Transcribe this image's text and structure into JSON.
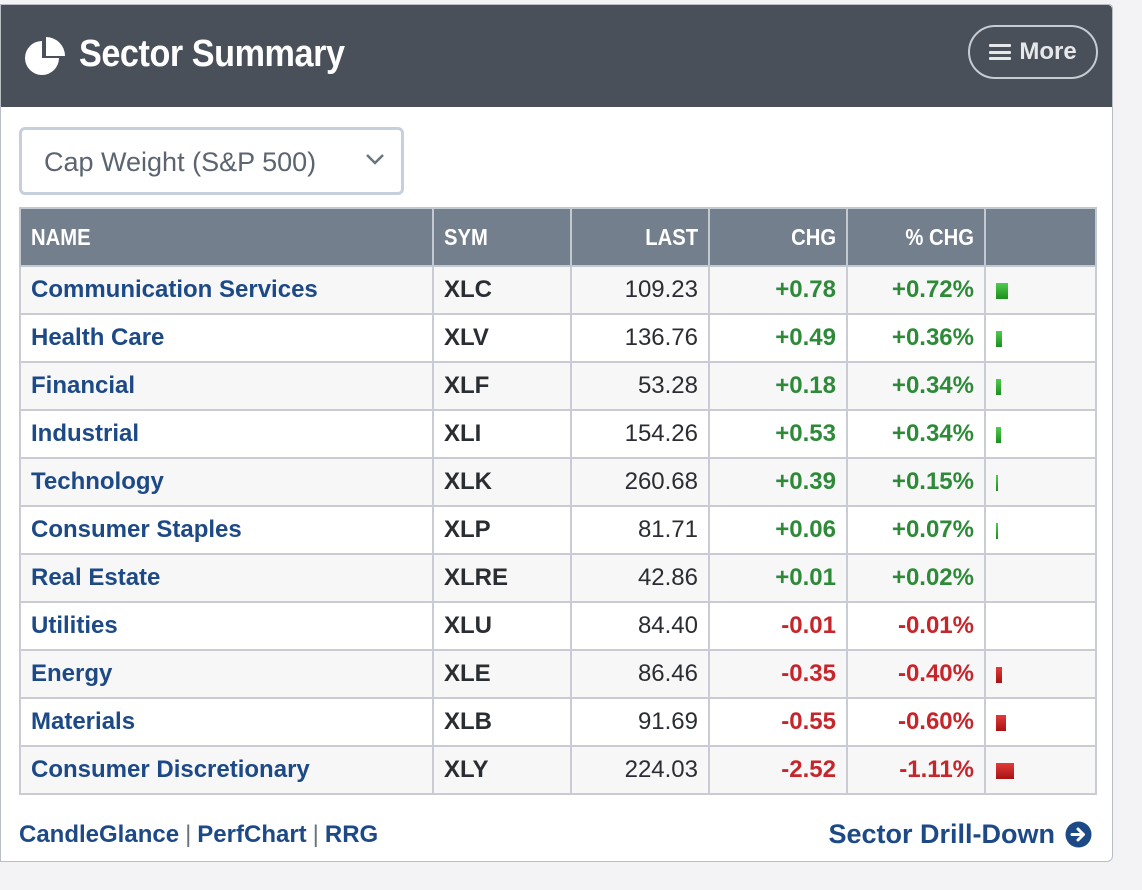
{
  "header": {
    "title": "Sector Summary",
    "more_label": "More"
  },
  "selector": {
    "value": "Cap Weight (S&P 500)"
  },
  "table": {
    "columns": [
      "NAME",
      "SYM",
      "LAST",
      "CHG",
      "% CHG",
      ""
    ],
    "rows": [
      {
        "name": "Communication Services",
        "sym": "XLC",
        "last": "109.23",
        "chg": "+0.78",
        "pct": "+0.72%",
        "dir": "up",
        "pct_value": 0.72
      },
      {
        "name": "Health Care",
        "sym": "XLV",
        "last": "136.76",
        "chg": "+0.49",
        "pct": "+0.36%",
        "dir": "up",
        "pct_value": 0.36
      },
      {
        "name": "Financial",
        "sym": "XLF",
        "last": "53.28",
        "chg": "+0.18",
        "pct": "+0.34%",
        "dir": "up",
        "pct_value": 0.34
      },
      {
        "name": "Industrial",
        "sym": "XLI",
        "last": "154.26",
        "chg": "+0.53",
        "pct": "+0.34%",
        "dir": "up",
        "pct_value": 0.34
      },
      {
        "name": "Technology",
        "sym": "XLK",
        "last": "260.68",
        "chg": "+0.39",
        "pct": "+0.15%",
        "dir": "up",
        "pct_value": 0.15
      },
      {
        "name": "Consumer Staples",
        "sym": "XLP",
        "last": "81.71",
        "chg": "+0.06",
        "pct": "+0.07%",
        "dir": "up",
        "pct_value": 0.07
      },
      {
        "name": "Real Estate",
        "sym": "XLRE",
        "last": "42.86",
        "chg": "+0.01",
        "pct": "+0.02%",
        "dir": "up",
        "pct_value": 0.02
      },
      {
        "name": "Utilities",
        "sym": "XLU",
        "last": "84.40",
        "chg": "-0.01",
        "pct": "-0.01%",
        "dir": "down",
        "pct_value": -0.01
      },
      {
        "name": "Energy",
        "sym": "XLE",
        "last": "86.46",
        "chg": "-0.35",
        "pct": "-0.40%",
        "dir": "down",
        "pct_value": -0.4
      },
      {
        "name": "Materials",
        "sym": "XLB",
        "last": "91.69",
        "chg": "-0.55",
        "pct": "-0.60%",
        "dir": "down",
        "pct_value": -0.6
      },
      {
        "name": "Consumer Discretionary",
        "sym": "XLY",
        "last": "224.03",
        "chg": "-2.52",
        "pct": "-1.11%",
        "dir": "down",
        "pct_value": -1.11
      }
    ]
  },
  "footer": {
    "links": [
      "CandleGlance",
      "PerfChart",
      "RRG"
    ],
    "separator": "|",
    "drill_label": "Sector Drill-Down"
  },
  "colors": {
    "positive": "#2e8a39",
    "negative": "#c6262b",
    "header_bg": "#4a5059",
    "link": "#1d4a86"
  },
  "icons": {
    "logo": "pie-chart-icon",
    "more": "hamburger-menu-icon",
    "select": "chevron-down-icon",
    "drill": "arrow-right-circle-icon"
  }
}
